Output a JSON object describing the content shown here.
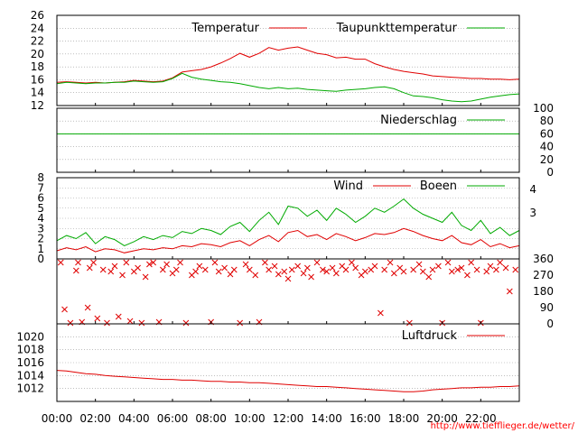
{
  "source_credit": "http://www.tiefflieger.de/wetter/",
  "colors": {
    "red": "#e00000",
    "green": "#00aa00",
    "grid": "#999999",
    "frame": "#000000"
  },
  "x_ticks": [
    "00:00",
    "02:00",
    "04:00",
    "06:00",
    "08:00",
    "10:00",
    "12:00",
    "14:00",
    "16:00",
    "18:00",
    "20:00",
    "22:00"
  ],
  "chart_data": [
    {
      "type": "line",
      "panel": "temperature",
      "xlim": [
        0,
        24
      ],
      "ylim": [
        12,
        26
      ],
      "y_ticks": [
        "12",
        "14",
        "16",
        "18",
        "20",
        "22",
        "24",
        "26"
      ],
      "grid": true,
      "series": [
        {
          "name": "Temperatur",
          "color": "red",
          "x": [
            0,
            0.5,
            1,
            1.5,
            2,
            2.5,
            3,
            3.5,
            4,
            4.5,
            5,
            5.5,
            6,
            6.5,
            7,
            7.5,
            8,
            8.5,
            9,
            9.5,
            10,
            10.5,
            11,
            11.5,
            12,
            12.5,
            13,
            13.5,
            14,
            14.5,
            15,
            15.5,
            16,
            16.5,
            17,
            17.5,
            18,
            18.5,
            19,
            19.5,
            20,
            20.5,
            21,
            21.5,
            22,
            22.5,
            23,
            23.5,
            24
          ],
          "values": [
            15.6,
            15.7,
            15.6,
            15.5,
            15.6,
            15.5,
            15.6,
            15.7,
            15.9,
            15.8,
            15.7,
            15.8,
            16.3,
            17.2,
            17.4,
            17.6,
            18.0,
            18.6,
            19.3,
            20.1,
            19.5,
            20.1,
            21.0,
            20.6,
            20.9,
            21.1,
            20.6,
            20.1,
            19.9,
            19.4,
            19.5,
            19.2,
            19.2,
            18.5,
            18.0,
            17.6,
            17.3,
            17.1,
            16.9,
            16.6,
            16.5,
            16.4,
            16.3,
            16.2,
            16.2,
            16.1,
            16.1,
            16.0,
            16.1
          ]
        },
        {
          "name": "Taupunkttemperatur",
          "color": "green",
          "x": [
            0,
            0.5,
            1,
            1.5,
            2,
            2.5,
            3,
            3.5,
            4,
            4.5,
            5,
            5.5,
            6,
            6.5,
            7,
            7.5,
            8,
            8.5,
            9,
            9.5,
            10,
            10.5,
            11,
            11.5,
            12,
            12.5,
            13,
            13.5,
            14,
            14.5,
            15,
            15.5,
            16,
            16.5,
            17,
            17.5,
            18,
            18.5,
            19,
            19.5,
            20,
            20.5,
            21,
            21.5,
            22,
            22.5,
            23,
            23.5,
            24
          ],
          "values": [
            15.4,
            15.6,
            15.5,
            15.4,
            15.5,
            15.5,
            15.6,
            15.6,
            15.8,
            15.7,
            15.6,
            15.7,
            16.2,
            17.0,
            16.4,
            16.1,
            15.9,
            15.7,
            15.6,
            15.4,
            15.1,
            14.8,
            14.6,
            14.8,
            14.6,
            14.7,
            14.5,
            14.4,
            14.3,
            14.2,
            14.4,
            14.5,
            14.6,
            14.8,
            14.9,
            14.6,
            14.0,
            13.5,
            13.4,
            13.2,
            12.9,
            12.7,
            12.6,
            12.7,
            13.0,
            13.3,
            13.5,
            13.7,
            13.8
          ]
        }
      ]
    },
    {
      "type": "line",
      "panel": "precipitation",
      "xlim": [
        0,
        24
      ],
      "ylim": [
        0,
        100
      ],
      "y_ticks": [
        "0",
        "20",
        "40",
        "60",
        "80",
        "100"
      ],
      "grid": true,
      "series": [
        {
          "name": "Niederschlag",
          "color": "green",
          "x": [
            0,
            24
          ],
          "values": [
            60,
            60
          ]
        }
      ]
    },
    {
      "type": "line",
      "panel": "wind",
      "xlim": [
        0,
        24
      ],
      "ylim": [
        0,
        8
      ],
      "y_ticks": [
        "0",
        "1",
        "2",
        "3",
        "4",
        "5",
        "6",
        "7",
        "8"
      ],
      "right_ticks": [
        "3",
        "4"
      ],
      "grid": true,
      "series": [
        {
          "name": "Wind",
          "color": "red",
          "x": [
            0,
            0.5,
            1,
            1.5,
            2,
            2.5,
            3,
            3.5,
            4,
            4.5,
            5,
            5.5,
            6,
            6.5,
            7,
            7.5,
            8,
            8.5,
            9,
            9.5,
            10,
            10.5,
            11,
            11.5,
            12,
            12.5,
            13,
            13.5,
            14,
            14.5,
            15,
            15.5,
            16,
            16.5,
            17,
            17.5,
            18,
            18.5,
            19,
            19.5,
            20,
            20.5,
            21,
            21.5,
            22,
            22.5,
            23,
            23.5,
            24
          ],
          "values": [
            0.8,
            1.1,
            0.9,
            1.2,
            0.7,
            1.0,
            0.9,
            0.6,
            0.8,
            1.0,
            0.9,
            1.1,
            1.0,
            1.3,
            1.2,
            1.5,
            1.4,
            1.2,
            1.6,
            1.8,
            1.3,
            1.9,
            2.3,
            1.7,
            2.6,
            2.8,
            2.2,
            2.4,
            1.9,
            2.5,
            2.2,
            1.8,
            2.1,
            2.5,
            2.4,
            2.6,
            3.0,
            2.7,
            2.3,
            2.0,
            1.8,
            2.3,
            1.6,
            1.4,
            1.9,
            1.2,
            1.5,
            1.1,
            1.3
          ]
        },
        {
          "name": "Boeen",
          "color": "green",
          "x": [
            0,
            0.5,
            1,
            1.5,
            2,
            2.5,
            3,
            3.5,
            4,
            4.5,
            5,
            5.5,
            6,
            6.5,
            7,
            7.5,
            8,
            8.5,
            9,
            9.5,
            10,
            10.5,
            11,
            11.5,
            12,
            12.5,
            13,
            13.5,
            14,
            14.5,
            15,
            15.5,
            16,
            16.5,
            17,
            17.5,
            18,
            18.5,
            19,
            19.5,
            20,
            20.5,
            21,
            21.5,
            22,
            22.5,
            23,
            23.5,
            24
          ],
          "values": [
            1.8,
            2.3,
            2.0,
            2.6,
            1.5,
            2.2,
            1.9,
            1.3,
            1.7,
            2.2,
            1.9,
            2.3,
            2.1,
            2.7,
            2.5,
            3.0,
            2.8,
            2.4,
            3.2,
            3.6,
            2.7,
            3.8,
            4.6,
            3.4,
            5.2,
            5.0,
            4.2,
            4.8,
            3.8,
            5.0,
            4.4,
            3.6,
            4.2,
            5.0,
            4.6,
            5.2,
            5.9,
            5.0,
            4.4,
            4.0,
            3.6,
            4.6,
            3.3,
            2.8,
            3.8,
            2.5,
            3.1,
            2.3,
            2.8
          ]
        }
      ]
    },
    {
      "type": "scatter",
      "panel": "wind_direction",
      "xlim": [
        0,
        24
      ],
      "ylim": [
        0,
        360
      ],
      "y_ticks": [
        "0",
        "90",
        "180",
        "270",
        "360"
      ],
      "marker": "x",
      "series": [
        {
          "name": "",
          "color": "red",
          "x": [
            0.2,
            0.4,
            0.7,
            1.0,
            1.1,
            1.3,
            1.6,
            1.7,
            1.9,
            2.1,
            2.4,
            2.6,
            2.8,
            3.0,
            3.2,
            3.4,
            3.6,
            3.8,
            4.0,
            4.2,
            4.4,
            4.6,
            4.8,
            5.0,
            5.3,
            5.5,
            5.7,
            6.0,
            6.2,
            6.4,
            6.7,
            7.0,
            7.2,
            7.4,
            7.7,
            8.0,
            8.2,
            8.4,
            8.7,
            9.0,
            9.2,
            9.5,
            9.8,
            10.0,
            10.3,
            10.5,
            10.8,
            11.0,
            11.3,
            11.5,
            11.8,
            12.0,
            12.2,
            12.5,
            12.8,
            13.0,
            13.2,
            13.5,
            13.8,
            14.0,
            14.3,
            14.5,
            14.8,
            15.0,
            15.3,
            15.5,
            15.8,
            16.0,
            16.3,
            16.5,
            16.8,
            17.0,
            17.3,
            17.5,
            17.8,
            18.0,
            18.3,
            18.5,
            18.8,
            19.0,
            19.3,
            19.5,
            19.8,
            20.0,
            20.3,
            20.5,
            20.8,
            21.0,
            21.3,
            21.5,
            21.8,
            22.0,
            22.3,
            22.5,
            22.8,
            23.0,
            23.3,
            23.5,
            23.8
          ],
          "values": [
            340,
            80,
            5,
            295,
            340,
            10,
            90,
            310,
            340,
            30,
            300,
            5,
            290,
            320,
            40,
            270,
            340,
            15,
            290,
            310,
            5,
            260,
            330,
            340,
            10,
            300,
            330,
            280,
            300,
            340,
            5,
            270,
            290,
            320,
            300,
            10,
            340,
            290,
            310,
            275,
            300,
            5,
            330,
            300,
            270,
            10,
            340,
            300,
            320,
            275,
            290,
            250,
            300,
            320,
            280,
            310,
            260,
            340,
            300,
            290,
            310,
            280,
            320,
            300,
            340,
            310,
            270,
            290,
            300,
            320,
            60,
            300,
            340,
            280,
            310,
            290,
            5,
            300,
            330,
            290,
            260,
            300,
            320,
            5,
            340,
            290,
            300,
            310,
            270,
            340,
            300,
            5,
            290,
            320,
            300,
            340,
            310,
            180,
            300
          ]
        }
      ]
    },
    {
      "type": "line",
      "panel": "pressure",
      "xlim": [
        0,
        24
      ],
      "ylim": [
        1010,
        1022
      ],
      "y_ticks": [
        "1012",
        "1014",
        "1016",
        "1018",
        "1020"
      ],
      "grid": true,
      "series": [
        {
          "name": "Luftdruck",
          "color": "red",
          "x": [
            0,
            0.5,
            1,
            1.5,
            2,
            2.5,
            3,
            3.5,
            4,
            4.5,
            5,
            5.5,
            6,
            6.5,
            7,
            7.5,
            8,
            8.5,
            9,
            9.5,
            10,
            10.5,
            11,
            11.5,
            12,
            12.5,
            13,
            13.5,
            14,
            14.5,
            15,
            15.5,
            16,
            16.5,
            17,
            17.5,
            18,
            18.5,
            19,
            19.5,
            20,
            20.5,
            21,
            21.5,
            22,
            22.5,
            23,
            23.5,
            24
          ],
          "values": [
            1014.8,
            1014.7,
            1014.5,
            1014.3,
            1014.2,
            1014.0,
            1013.9,
            1013.8,
            1013.7,
            1013.6,
            1013.5,
            1013.4,
            1013.4,
            1013.3,
            1013.3,
            1013.2,
            1013.1,
            1013.1,
            1013.0,
            1013.0,
            1012.9,
            1012.9,
            1012.8,
            1012.7,
            1012.6,
            1012.5,
            1012.4,
            1012.3,
            1012.3,
            1012.2,
            1012.1,
            1012.0,
            1011.9,
            1011.8,
            1011.7,
            1011.6,
            1011.5,
            1011.5,
            1011.6,
            1011.8,
            1011.9,
            1012.0,
            1012.1,
            1012.1,
            1012.2,
            1012.2,
            1012.3,
            1012.3,
            1012.4
          ]
        }
      ]
    }
  ]
}
